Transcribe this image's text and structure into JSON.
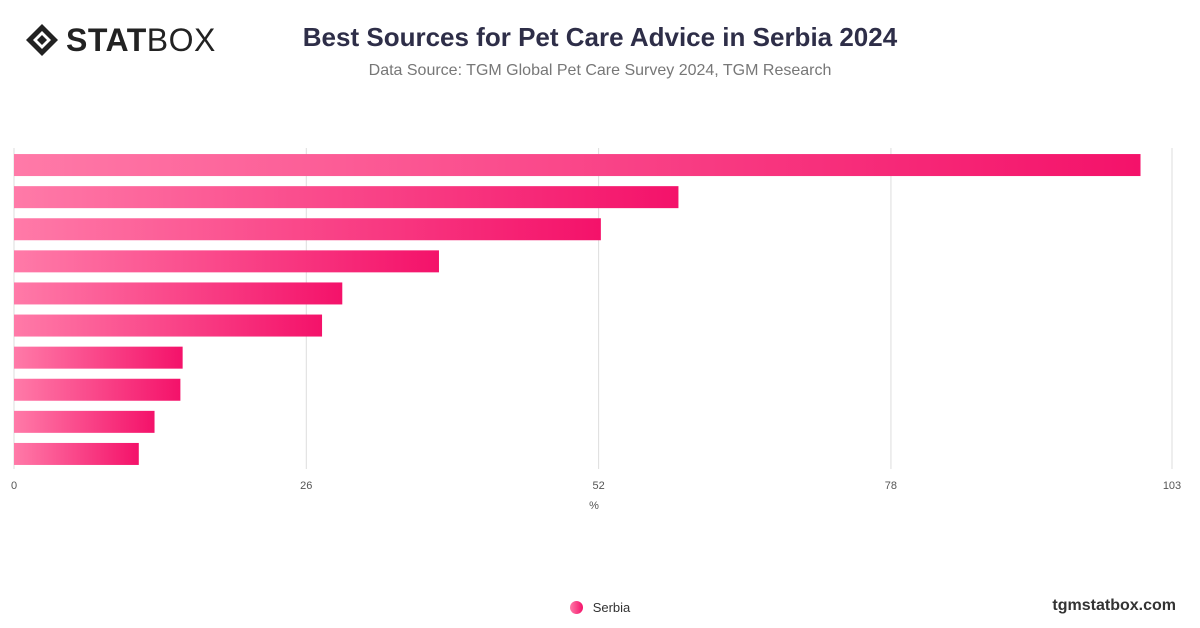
{
  "brand": {
    "logo_bold": "STAT",
    "logo_light": "BOX",
    "website": "tgmstatbox.com"
  },
  "colors": {
    "bar_start": "#ff7aa8",
    "bar_end": "#f4126a",
    "grid": "#dddddd",
    "title": "#2e2e48"
  },
  "chart_data": {
    "type": "bar",
    "orientation": "horizontal",
    "title": "Best Sources for Pet Care Advice in Serbia 2024",
    "subtitle": "Data Source: TGM Global Pet Care Survey 2024, TGM Research",
    "xlabel": "%",
    "ylabel": "",
    "xlim": [
      0,
      103
    ],
    "xticks": [
      0,
      26,
      52,
      78,
      103
    ],
    "grid": true,
    "legend_position": "bottom",
    "series": [
      {
        "name": "Serbia",
        "values": [
          100.2,
          59.1,
          52.2,
          37.8,
          29.2,
          27.4,
          15.0,
          14.8,
          12.5,
          11.1
        ]
      }
    ]
  }
}
